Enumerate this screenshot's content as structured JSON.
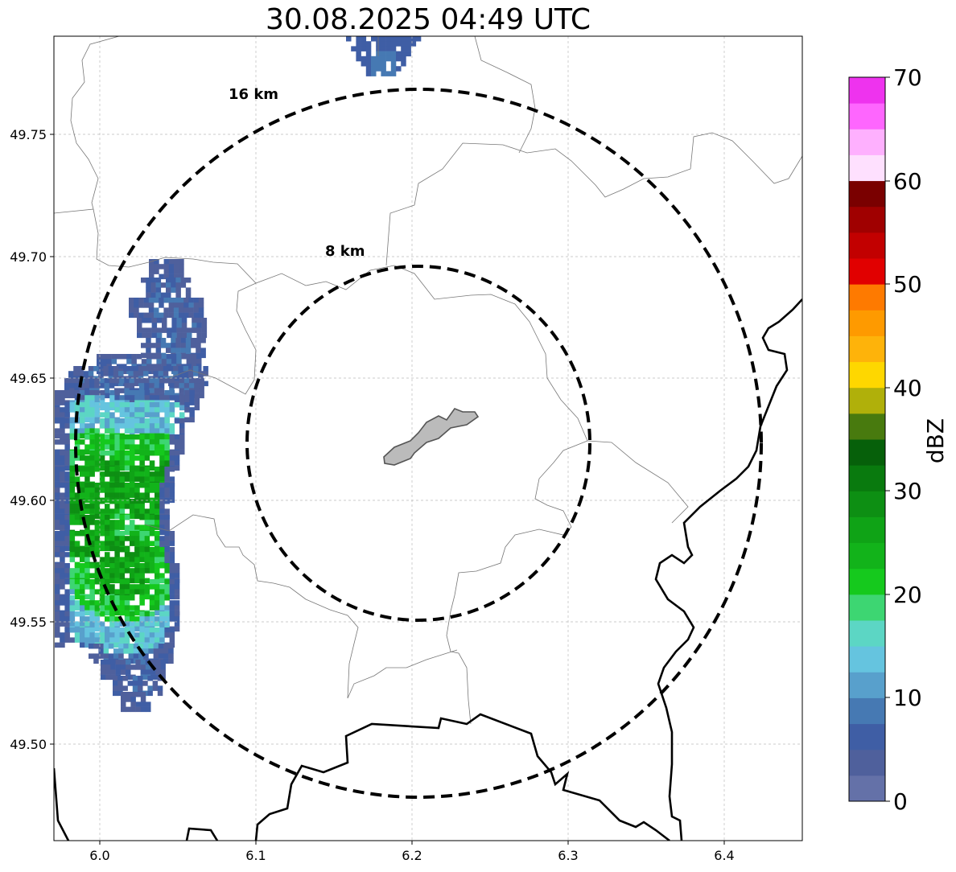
{
  "title": "30.08.2025 04:49 UTC",
  "map": {
    "lon_range": [
      5.97,
      6.45
    ],
    "lat_range": [
      49.46,
      49.79
    ],
    "x_ticks": [
      "6.0",
      "6.1",
      "6.2",
      "6.3",
      "6.4"
    ],
    "y_ticks": [
      "49.50",
      "49.55",
      "49.60",
      "49.65",
      "49.70",
      "49.75"
    ],
    "grid": "on",
    "rings": [
      {
        "label": "8 km",
        "radius_km": 8
      },
      {
        "label": "16 km",
        "radius_km": 16
      }
    ]
  },
  "colorbar": {
    "label": "dBZ",
    "ticks": [
      "0",
      "10",
      "20",
      "30",
      "40",
      "50",
      "60",
      "70"
    ],
    "colors": [
      "#6471a8",
      "#4f609c",
      "#3f5ea5",
      "#4679b3",
      "#58a0cc",
      "#65c4df",
      "#5cd6c4",
      "#3dd672",
      "#15c91d",
      "#12b31a",
      "#0fa316",
      "#0d8f13",
      "#097a0e",
      "#06600a",
      "#487a0e",
      "#b0b00a",
      "#fed700",
      "#feb30a",
      "#fe9a00",
      "#fe7a00",
      "#e10000",
      "#c20000",
      "#a00000",
      "#7a0000",
      "#fee0fe",
      "#feb0fe",
      "#fe66fe",
      "#ee33ee"
    ]
  }
}
